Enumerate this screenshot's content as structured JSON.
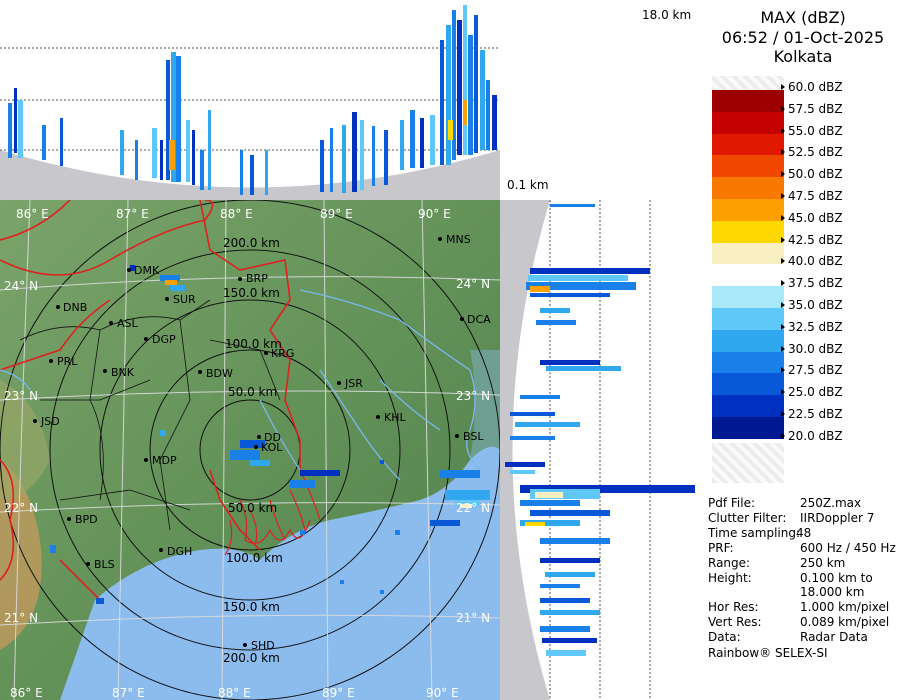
{
  "header": {
    "product": "MAX (dBZ)",
    "datetime": "06:52 / 01-Oct-2025",
    "station": "Kolkata"
  },
  "height_labels": {
    "top": "18.0 km",
    "bottom": "0.1 km"
  },
  "legend": {
    "unit": "dBZ",
    "levels": [
      {
        "label": "60.0 dBZ",
        "color": "#f4f4f4"
      },
      {
        "label": "57.5 dBZ",
        "color": "#9c0000"
      },
      {
        "label": "55.0 dBZ",
        "color": "#c40000"
      },
      {
        "label": "52.5 dBZ",
        "color": "#e01800"
      },
      {
        "label": "50.0 dBZ",
        "color": "#f04800"
      },
      {
        "label": "47.5 dBZ",
        "color": "#f87800"
      },
      {
        "label": "45.0 dBZ",
        "color": "#fca000"
      },
      {
        "label": "42.5 dBZ",
        "color": "#fcd800"
      },
      {
        "label": "40.0 dBZ",
        "color": "#f8f0c0"
      },
      {
        "label": "37.5 dBZ",
        "color": "#ffffff"
      },
      {
        "label": "35.0 dBZ",
        "color": "#a8e8f8"
      },
      {
        "label": "32.5 dBZ",
        "color": "#60c8f8"
      },
      {
        "label": "30.0 dBZ",
        "color": "#30a8f0"
      },
      {
        "label": "27.5 dBZ",
        "color": "#1880e8"
      },
      {
        "label": "25.0 dBZ",
        "color": "#0858d8"
      },
      {
        "label": "22.5 dBZ",
        "color": "#0030c0"
      },
      {
        "label": "20.0 dBZ",
        "color": "#001890"
      }
    ]
  },
  "metadata": [
    {
      "key": "Pdf File:",
      "value": "250Z.max"
    },
    {
      "key": "Clutter Filter:",
      "value": "IIRDoppler 7"
    },
    {
      "key": "Time sampling:",
      "value": "48"
    },
    {
      "key": "PRF:",
      "value": "600 Hz / 450 Hz"
    },
    {
      "key": "Range:",
      "value": "250 km"
    },
    {
      "key": "Height:",
      "value": "0.100 km to"
    },
    {
      "key": "",
      "value": "18.000 km"
    },
    {
      "key": "Hor Res:",
      "value": "1.000 km/pixel"
    },
    {
      "key": "Vert Res:",
      "value": "0.089 km/pixel"
    },
    {
      "key": "Data:",
      "value": "Radar Data"
    }
  ],
  "footer": "Rainbow® SELEX-SI",
  "map": {
    "lon_labels": [
      "86° E",
      "87° E",
      "88° E",
      "89° E",
      "90° E"
    ],
    "lat_labels": [
      "24° N",
      "23° N",
      "22° N",
      "21° N"
    ],
    "range_rings": [
      "50.0 km",
      "100.0 km",
      "150.0 km",
      "200.0 km"
    ],
    "range_rings_south": [
      "50.0 km",
      "100.0 km",
      "150.0 km",
      "200.0 km"
    ],
    "cities": [
      {
        "name": "MNS"
      },
      {
        "name": "DMK"
      },
      {
        "name": "BRP"
      },
      {
        "name": "SUR"
      },
      {
        "name": "DNB"
      },
      {
        "name": "ASL"
      },
      {
        "name": "DGP"
      },
      {
        "name": "KRG"
      },
      {
        "name": "DCA"
      },
      {
        "name": "PRL"
      },
      {
        "name": "BNK"
      },
      {
        "name": "BDW"
      },
      {
        "name": "JSR"
      },
      {
        "name": "KHL"
      },
      {
        "name": "JSD"
      },
      {
        "name": "DD"
      },
      {
        "name": "KOL"
      },
      {
        "name": "MDP"
      },
      {
        "name": "BSL"
      },
      {
        "name": "BPD"
      },
      {
        "name": "DGH"
      },
      {
        "name": "BLS"
      },
      {
        "name": "SHD"
      }
    ]
  }
}
